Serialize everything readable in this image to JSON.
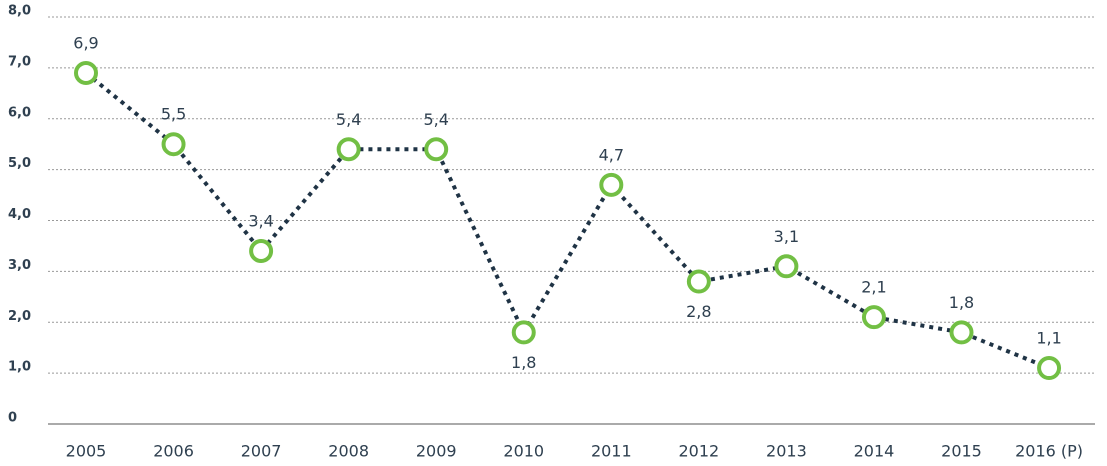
{
  "chart_data": {
    "type": "line",
    "categories": [
      "2005",
      "2006",
      "2007",
      "2008",
      "2009",
      "2010",
      "2011",
      "2012",
      "2013",
      "2014",
      "2015",
      "2016 (P)"
    ],
    "values": [
      6.9,
      5.5,
      3.4,
      5.4,
      5.4,
      1.8,
      4.7,
      2.8,
      3.1,
      2.1,
      1.8,
      1.1
    ],
    "value_labels": [
      "6,9",
      "5,5",
      "3,4",
      "5,4",
      "5,4",
      "1,8",
      "4,7",
      "2,8",
      "3,1",
      "2,1",
      "1,8",
      "1,1"
    ],
    "color": "#1f3345",
    "marker_color": "#72bf44",
    "ylim": [
      0,
      8
    ],
    "yticks": [
      0,
      {
        "value": 1,
        "label": "1,0"
      },
      {
        "value": 2,
        "label": "2,0"
      },
      {
        "value": 3,
        "label": "3,0"
      },
      {
        "value": 4,
        "label": "4,0"
      },
      {
        "value": 5,
        "label": "5,0"
      },
      {
        "value": 6,
        "label": "6,0"
      },
      {
        "value": 7,
        "label": "7,0"
      },
      {
        "value": 8,
        "label": "8,0"
      }
    ],
    "grid": true
  }
}
